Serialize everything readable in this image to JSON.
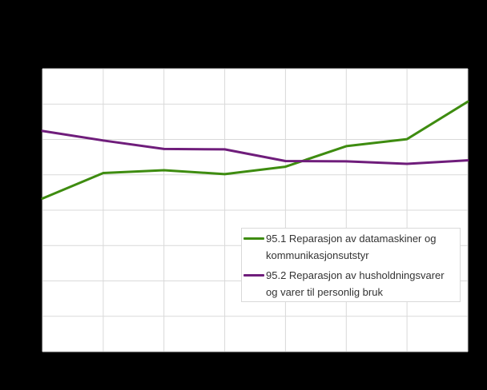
{
  "colors": {
    "page_background": "#000000",
    "plot_background": "#ffffff",
    "gridline": "#d9d9d9",
    "legend_background": "#ffffff",
    "legend_border": "#d9d9d9",
    "legend_text": "#333333"
  },
  "chart_data": {
    "type": "line",
    "x": [
      1,
      2,
      3,
      4,
      5,
      6,
      7,
      8
    ],
    "xlim": [
      1,
      8
    ],
    "ylim": [
      0,
      8
    ],
    "grid": true,
    "axis_tick_labels_visible": false,
    "legend_position": "inside-bottom-right",
    "y_value_units": "gridline steps above bottom axis (axis tick labels are not legible in the image)",
    "series": [
      {
        "name": "95.1 Reparasjon av datamaskiner og kommunikasjonsutstyr",
        "color": "#3e8c10",
        "values": [
          4.33,
          5.05,
          5.13,
          5.02,
          5.23,
          5.81,
          6.01,
          7.07
        ]
      },
      {
        "name": "95.2 Reparasjon av husholdningsvarer og varer til personlig bruk",
        "color": "#6f1d7b",
        "values": [
          6.24,
          5.97,
          5.73,
          5.72,
          5.39,
          5.38,
          5.31,
          5.41
        ]
      }
    ]
  }
}
